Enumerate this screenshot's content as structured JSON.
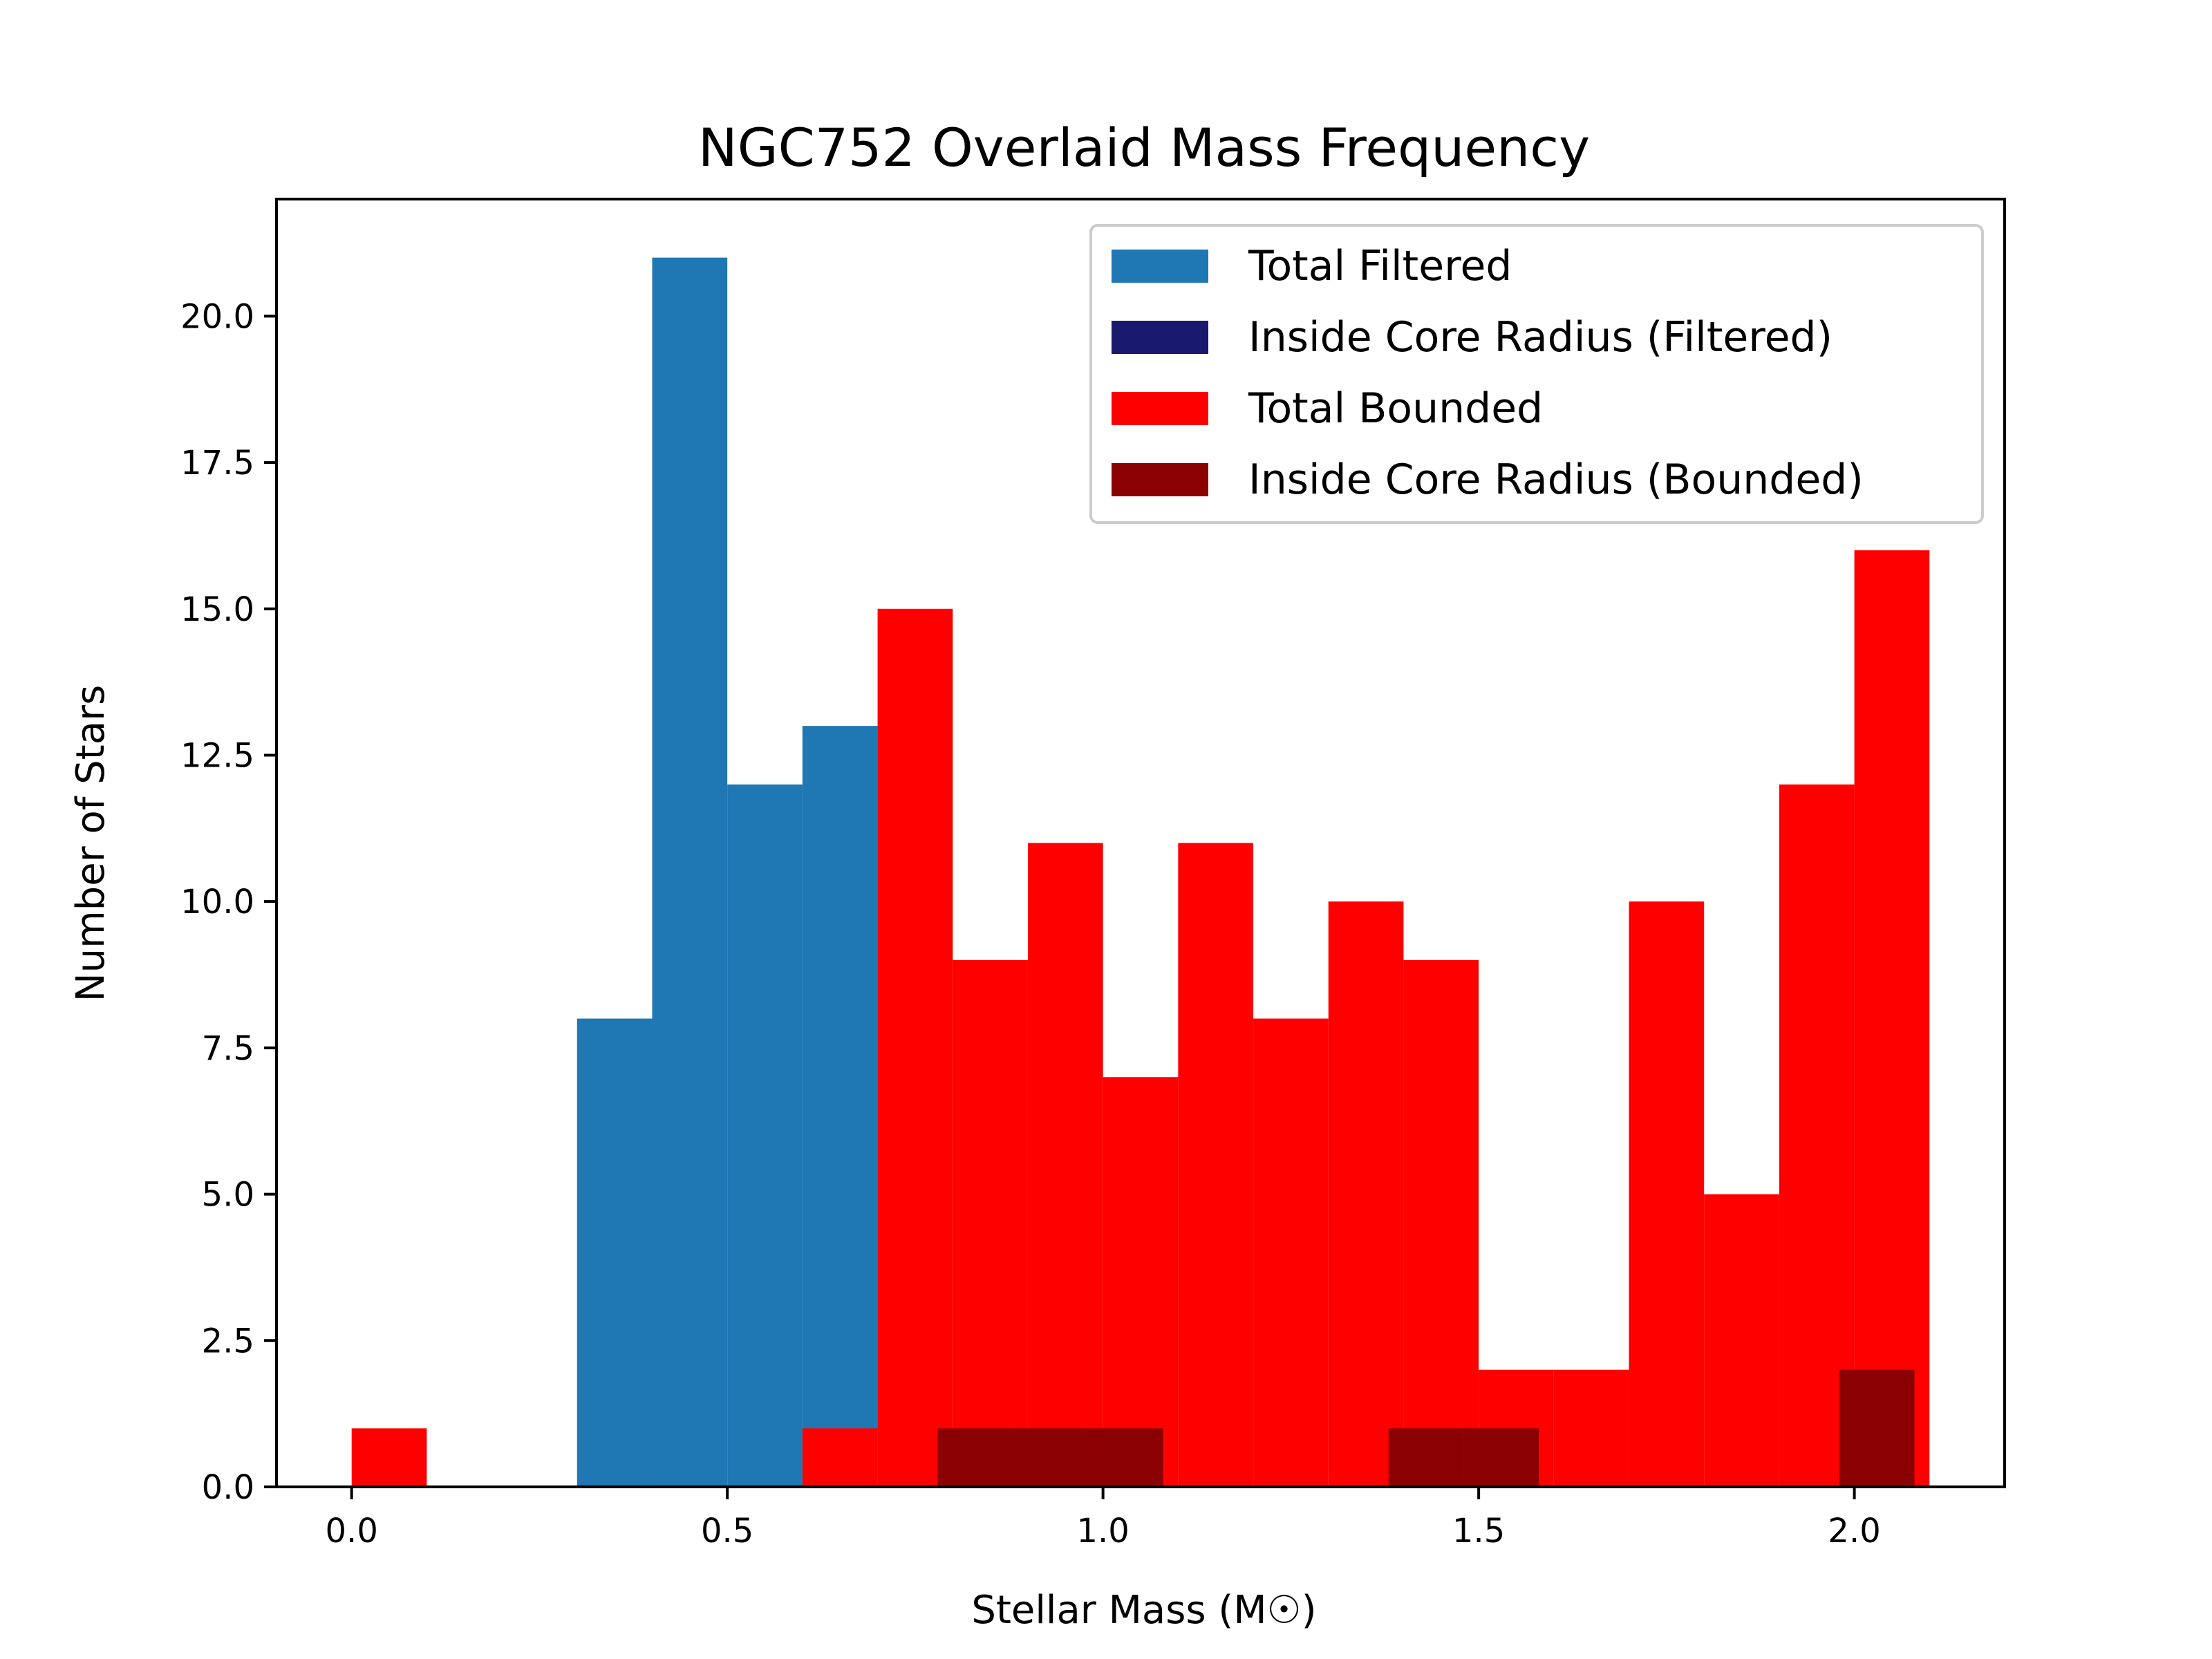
{
  "chart_data": {
    "type": "bar",
    "title": "NGC752 Overlaid Mass Frequency",
    "xlabel": "Stellar Mass (M☉)",
    "ylabel": "Number of Stars",
    "xlim": [
      -0.1,
      2.2
    ],
    "ylim": [
      0,
      22
    ],
    "xticks": [
      0.0,
      0.5,
      1.0,
      1.5,
      2.0
    ],
    "xtick_labels": [
      "0.0",
      "0.5",
      "1.0",
      "1.5",
      "2.0"
    ],
    "yticks": [
      0,
      2.5,
      5,
      7.5,
      10,
      12.5,
      15,
      17.5,
      20
    ],
    "ytick_labels": [
      "0.0",
      "2.5",
      "5.0",
      "7.5",
      "10.0",
      "12.5",
      "15.0",
      "17.5",
      "20.0"
    ],
    "legend_position": "top-right",
    "grid": false,
    "series": [
      {
        "name": "Total Filtered",
        "color": "#1f77b4",
        "bins": [
          {
            "x0": 0.3,
            "x1": 0.4,
            "count": 8
          },
          {
            "x0": 0.4,
            "x1": 0.5,
            "count": 21
          },
          {
            "x0": 0.5,
            "x1": 0.6,
            "count": 12
          },
          {
            "x0": 0.6,
            "x1": 0.7,
            "count": 13
          }
        ]
      },
      {
        "name": "Inside Core Radius (Filtered)",
        "color": "#191970",
        "bins": []
      },
      {
        "name": "Total Bounded",
        "color": "#ff0000",
        "bins": [
          {
            "x0": 0.0,
            "x1": 0.1,
            "count": 1
          },
          {
            "x0": 0.6,
            "x1": 0.7,
            "count": 1
          },
          {
            "x0": 0.7,
            "x1": 0.8,
            "count": 15
          },
          {
            "x0": 0.8,
            "x1": 0.9,
            "count": 9
          },
          {
            "x0": 0.9,
            "x1": 1.0,
            "count": 11
          },
          {
            "x0": 1.0,
            "x1": 1.1,
            "count": 7
          },
          {
            "x0": 1.1,
            "x1": 1.2,
            "count": 11
          },
          {
            "x0": 1.2,
            "x1": 1.3,
            "count": 8
          },
          {
            "x0": 1.3,
            "x1": 1.4,
            "count": 10
          },
          {
            "x0": 1.4,
            "x1": 1.5,
            "count": 9
          },
          {
            "x0": 1.5,
            "x1": 1.6,
            "count": 2
          },
          {
            "x0": 1.6,
            "x1": 1.7,
            "count": 2
          },
          {
            "x0": 1.7,
            "x1": 1.8,
            "count": 10
          },
          {
            "x0": 1.8,
            "x1": 1.9,
            "count": 5
          },
          {
            "x0": 1.9,
            "x1": 2.0,
            "count": 12
          },
          {
            "x0": 2.0,
            "x1": 2.1,
            "count": 16
          }
        ]
      },
      {
        "name": "Inside Core Radius (Bounded)",
        "color": "#8b0000",
        "bins": [
          {
            "x0": 0.78,
            "x1": 0.88,
            "count": 1
          },
          {
            "x0": 0.88,
            "x1": 0.98,
            "count": 1
          },
          {
            "x0": 0.98,
            "x1": 1.08,
            "count": 1
          },
          {
            "x0": 1.38,
            "x1": 1.48,
            "count": 1
          },
          {
            "x0": 1.48,
            "x1": 1.58,
            "count": 1
          },
          {
            "x0": 1.98,
            "x1": 2.08,
            "count": 2
          }
        ]
      }
    ]
  }
}
